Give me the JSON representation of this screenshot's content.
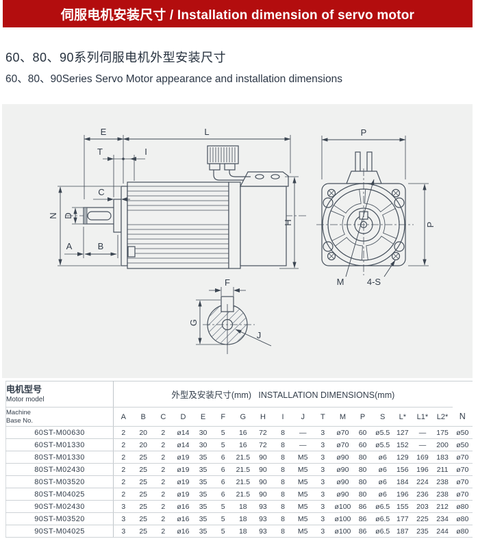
{
  "banner": {
    "title": "伺服电机安装尺寸 / Installation dimension of servo motor"
  },
  "section": {
    "title_zh": "60、80、90系列伺服电机外型安装尺寸",
    "title_en": "60、80、90Series Servo Motor appearance and installation dimensions"
  },
  "drawing": {
    "labels": {
      "E": "E",
      "L": "L",
      "T": "T",
      "I": "I",
      "C": "C",
      "N": "N",
      "D": "D",
      "A": "A",
      "B": "B",
      "H": "H",
      "P_top": "P",
      "P_side": "P",
      "M": "M",
      "S4": "4-S",
      "F": "F",
      "G": "G",
      "J": "J"
    }
  },
  "table": {
    "model_header_zh": "电机型号",
    "model_header_en": "Motor model",
    "dims_header": "外型及安装尺寸(mm)   INSTALLATION DIMENSIONS(mm)",
    "machine_base_line1": "Machine",
    "machine_base_line2": "Base No.",
    "columns": [
      "A",
      "B",
      "C",
      "D",
      "E",
      "F",
      "G",
      "H",
      "I",
      "J",
      "T",
      "M",
      "P",
      "S",
      "L*",
      "L1*",
      "L2*",
      "N"
    ],
    "rows": [
      {
        "model": "60ST-M00630",
        "values": [
          "2",
          "20",
          "2",
          "ø14",
          "30",
          "5",
          "16",
          "72",
          "8",
          "—",
          "3",
          "ø70",
          "60",
          "ø5.5",
          "127",
          "—",
          "175",
          "ø50"
        ]
      },
      {
        "model": "60ST-M01330",
        "values": [
          "2",
          "20",
          "2",
          "ø14",
          "30",
          "5",
          "16",
          "72",
          "8",
          "—",
          "3",
          "ø70",
          "60",
          "ø5.5",
          "152",
          "—",
          "200",
          "ø50"
        ]
      },
      {
        "model": "80ST-M01330",
        "values": [
          "2",
          "25",
          "2",
          "ø19",
          "35",
          "6",
          "21.5",
          "90",
          "8",
          "M5",
          "3",
          "ø90",
          "80",
          "ø6",
          "129",
          "169",
          "183",
          "ø70"
        ]
      },
      {
        "model": "80ST-M02430",
        "values": [
          "2",
          "25",
          "2",
          "ø19",
          "35",
          "6",
          "21.5",
          "90",
          "8",
          "M5",
          "3",
          "ø90",
          "80",
          "ø6",
          "156",
          "196",
          "211",
          "ø70"
        ]
      },
      {
        "model": "80ST-M03520",
        "values": [
          "2",
          "25",
          "2",
          "ø19",
          "35",
          "6",
          "21.5",
          "90",
          "8",
          "M5",
          "3",
          "ø90",
          "80",
          "ø6",
          "184",
          "224",
          "238",
          "ø70"
        ]
      },
      {
        "model": "80ST-M04025",
        "values": [
          "2",
          "25",
          "2",
          "ø19",
          "35",
          "6",
          "21.5",
          "90",
          "8",
          "M5",
          "3",
          "ø90",
          "80",
          "ø6",
          "196",
          "236",
          "238",
          "ø70"
        ]
      },
      {
        "model": "90ST-M02430",
        "values": [
          "3",
          "25",
          "2",
          "ø16",
          "35",
          "5",
          "18",
          "93",
          "8",
          "M5",
          "3",
          "ø100",
          "86",
          "ø6.5",
          "155",
          "203",
          "212",
          "ø80"
        ]
      },
      {
        "model": "90ST-M03520",
        "values": [
          "3",
          "25",
          "2",
          "ø16",
          "35",
          "5",
          "18",
          "93",
          "8",
          "M5",
          "3",
          "ø100",
          "86",
          "ø6.5",
          "177",
          "225",
          "234",
          "ø80"
        ]
      },
      {
        "model": "90ST-M04025",
        "values": [
          "3",
          "25",
          "2",
          "ø16",
          "35",
          "5",
          "18",
          "93",
          "8",
          "M5",
          "3",
          "ø100",
          "86",
          "ø6.5",
          "187",
          "235",
          "244",
          "ø80"
        ]
      }
    ]
  },
  "colors": {
    "banner_red": "#b30d0e",
    "panel_gray": "#f0f1f0",
    "line": "#46505c",
    "text": "#333e4b",
    "border": "#c9ced2"
  }
}
